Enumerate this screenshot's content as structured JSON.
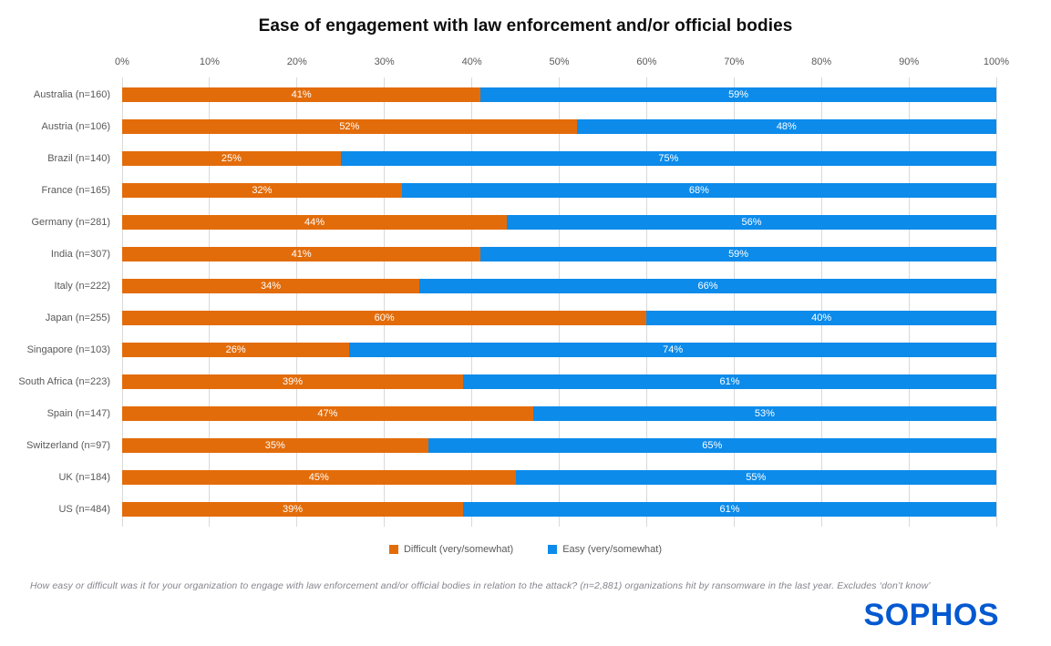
{
  "title": "Ease of engagement with law enforcement and/or official bodies",
  "chart_data": {
    "type": "bar",
    "orientation": "horizontal",
    "stacked": true,
    "grid": true,
    "legend_position": "bottom",
    "xlim": [
      0,
      100
    ],
    "x_ticks": [
      "0%",
      "10%",
      "20%",
      "30%",
      "40%",
      "50%",
      "60%",
      "70%",
      "80%",
      "90%",
      "100%"
    ],
    "categories": [
      "Australia (n=160)",
      "Austria (n=106)",
      "Brazil (n=140)",
      "France (n=165)",
      "Germany (n=281)",
      "India (n=307)",
      "Italy (n=222)",
      "Japan (n=255)",
      "Singapore (n=103)",
      "South Africa (n=223)",
      "Spain (n=147)",
      "Switzerland (n=97)",
      "UK (n=184)",
      "US (n=484)"
    ],
    "series": [
      {
        "name": "Difficult (very/somewhat)",
        "color": "#e36c0a",
        "values": [
          41,
          52,
          25,
          32,
          44,
          41,
          34,
          60,
          26,
          39,
          47,
          35,
          45,
          39
        ]
      },
      {
        "name": "Easy (very/somewhat)",
        "color": "#0c8bea",
        "values": [
          59,
          48,
          75,
          68,
          56,
          59,
          66,
          40,
          74,
          61,
          53,
          65,
          55,
          61
        ]
      }
    ],
    "value_label_suffix": "%"
  },
  "footnote": "How easy or difficult was it for your organization to engage with law enforcement and/or official bodies in relation to the attack? (n=2,881) organizations hit by ransomware in the last year. Excludes ‘don’t know’",
  "logo_text": "SOPHOS",
  "colors": {
    "difficult": "#e36c0a",
    "easy": "#0c8bea",
    "gridline": "#d9d9d9",
    "axis_text": "#595959",
    "footnote_text": "#85858f",
    "logo_blue": "#0459d0"
  }
}
